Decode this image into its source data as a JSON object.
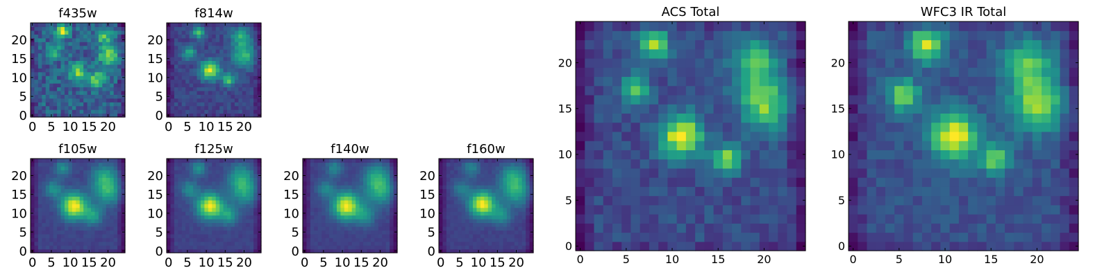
{
  "chart_data": [
    {
      "type": "heatmap",
      "title": "f435w",
      "grid_size": 25,
      "xlim": [
        0,
        25
      ],
      "ylim": [
        0,
        25
      ],
      "xticks": [
        0,
        5,
        10,
        15,
        20
      ],
      "yticks": [
        0,
        5,
        10,
        15,
        20
      ],
      "colormap": "viridis",
      "sources": [
        {
          "x": 8,
          "y": 22.5,
          "amp": 0.75,
          "sigma": 1.2
        },
        {
          "x": 12,
          "y": 11.5,
          "amp": 0.6,
          "sigma": 1.6
        },
        {
          "x": 20,
          "y": 16,
          "amp": 0.7,
          "sigma": 1.8
        },
        {
          "x": 17,
          "y": 9.5,
          "amp": 0.6,
          "sigma": 1.5
        },
        {
          "x": 19,
          "y": 21,
          "amp": 0.5,
          "sigma": 1.5
        },
        {
          "x": 6,
          "y": 17,
          "amp": 0.45,
          "sigma": 1.2
        }
      ],
      "background": 0.35,
      "noise": 0.35,
      "seed": 11
    },
    {
      "type": "heatmap",
      "title": "f814w",
      "grid_size": 25,
      "xlim": [
        0,
        25
      ],
      "ylim": [
        0,
        25
      ],
      "xticks": [
        0,
        5,
        10,
        15,
        20
      ],
      "yticks": [
        0,
        5,
        10,
        15,
        20
      ],
      "colormap": "viridis",
      "sources": [
        {
          "x": 8,
          "y": 22,
          "amp": 0.6,
          "sigma": 1.1
        },
        {
          "x": 11,
          "y": 12,
          "amp": 0.85,
          "sigma": 1.8
        },
        {
          "x": 16,
          "y": 9.5,
          "amp": 0.6,
          "sigma": 1.2
        },
        {
          "x": 5.5,
          "y": 16.5,
          "amp": 0.5,
          "sigma": 1.2
        },
        {
          "x": 20,
          "y": 16,
          "amp": 0.55,
          "sigma": 2.2
        },
        {
          "x": 19,
          "y": 21,
          "amp": 0.45,
          "sigma": 1.8
        }
      ],
      "background": 0.2,
      "noise": 0.16,
      "seed": 23
    },
    {
      "type": "heatmap",
      "title": "f105w",
      "grid_size": 25,
      "xlim": [
        0,
        25
      ],
      "ylim": [
        0,
        25
      ],
      "xticks": [
        0,
        5,
        10,
        15,
        20
      ],
      "yticks": [
        0,
        5,
        10,
        15,
        20
      ],
      "colormap": "viridis",
      "sources": [
        {
          "x": 11,
          "y": 12,
          "amp": 0.9,
          "sigma": 2.4
        },
        {
          "x": 8,
          "y": 22,
          "amp": 0.35,
          "sigma": 1.5
        },
        {
          "x": 5.5,
          "y": 16.5,
          "amp": 0.35,
          "sigma": 1.6
        },
        {
          "x": 16,
          "y": 9.5,
          "amp": 0.4,
          "sigma": 1.8
        },
        {
          "x": 20,
          "y": 16,
          "amp": 0.45,
          "sigma": 2.6
        },
        {
          "x": 19,
          "y": 20,
          "amp": 0.35,
          "sigma": 2.4
        }
      ],
      "background": 0.2,
      "noise": 0.07,
      "seed": 37
    },
    {
      "type": "heatmap",
      "title": "f125w",
      "grid_size": 25,
      "xlim": [
        0,
        25
      ],
      "ylim": [
        0,
        25
      ],
      "xticks": [
        0,
        5,
        10,
        15,
        20
      ],
      "yticks": [
        0,
        5,
        10,
        15,
        20
      ],
      "colormap": "viridis",
      "sources": [
        {
          "x": 11,
          "y": 12,
          "amp": 0.92,
          "sigma": 2.4
        },
        {
          "x": 8,
          "y": 22,
          "amp": 0.38,
          "sigma": 1.4
        },
        {
          "x": 5.5,
          "y": 16.5,
          "amp": 0.35,
          "sigma": 1.6
        },
        {
          "x": 16,
          "y": 9.5,
          "amp": 0.4,
          "sigma": 1.8
        },
        {
          "x": 20,
          "y": 16,
          "amp": 0.45,
          "sigma": 2.6
        },
        {
          "x": 19,
          "y": 20,
          "amp": 0.35,
          "sigma": 2.4
        }
      ],
      "background": 0.2,
      "noise": 0.07,
      "seed": 41
    },
    {
      "type": "heatmap",
      "title": "f140w",
      "grid_size": 25,
      "xlim": [
        0,
        25
      ],
      "ylim": [
        0,
        25
      ],
      "xticks": [
        0,
        5,
        10,
        15,
        20
      ],
      "yticks": [
        0,
        5,
        10,
        15,
        20
      ],
      "colormap": "viridis",
      "sources": [
        {
          "x": 11,
          "y": 12,
          "amp": 0.9,
          "sigma": 2.5
        },
        {
          "x": 8,
          "y": 22,
          "amp": 0.3,
          "sigma": 1.6
        },
        {
          "x": 5.5,
          "y": 16.5,
          "amp": 0.3,
          "sigma": 1.6
        },
        {
          "x": 16,
          "y": 9.5,
          "amp": 0.35,
          "sigma": 1.8
        },
        {
          "x": 20,
          "y": 16,
          "amp": 0.45,
          "sigma": 2.8
        },
        {
          "x": 19,
          "y": 20,
          "amp": 0.35,
          "sigma": 2.4
        }
      ],
      "background": 0.22,
      "noise": 0.06,
      "seed": 53
    },
    {
      "type": "heatmap",
      "title": "f160w",
      "grid_size": 25,
      "xlim": [
        0,
        25
      ],
      "ylim": [
        0,
        25
      ],
      "xticks": [
        0,
        5,
        10,
        15,
        20
      ],
      "yticks": [
        0,
        5,
        10,
        15,
        20
      ],
      "colormap": "viridis",
      "sources": [
        {
          "x": 11,
          "y": 12.5,
          "amp": 0.92,
          "sigma": 2.4
        },
        {
          "x": 8,
          "y": 22,
          "amp": 0.3,
          "sigma": 1.6
        },
        {
          "x": 5.5,
          "y": 16.5,
          "amp": 0.3,
          "sigma": 1.6
        },
        {
          "x": 16,
          "y": 9.5,
          "amp": 0.35,
          "sigma": 1.8
        },
        {
          "x": 20,
          "y": 16,
          "amp": 0.45,
          "sigma": 2.8
        },
        {
          "x": 19,
          "y": 20,
          "amp": 0.35,
          "sigma": 2.4
        }
      ],
      "background": 0.2,
      "noise": 0.06,
      "seed": 67
    },
    {
      "type": "heatmap",
      "title": "ACS Total",
      "grid_size": 25,
      "xlim": [
        0,
        25
      ],
      "ylim": [
        0,
        25
      ],
      "xticks": [
        0,
        5,
        10,
        15,
        20
      ],
      "yticks": [
        0,
        5,
        10,
        15,
        20
      ],
      "colormap": "viridis",
      "sources": [
        {
          "x": 8,
          "y": 22,
          "amp": 0.65,
          "sigma": 1.2
        },
        {
          "x": 11,
          "y": 12,
          "amp": 0.82,
          "sigma": 1.6
        },
        {
          "x": 16,
          "y": 9.5,
          "amp": 0.62,
          "sigma": 1.1
        },
        {
          "x": 6,
          "y": 17,
          "amp": 0.55,
          "sigma": 1.1
        },
        {
          "x": 20,
          "y": 15.5,
          "amp": 0.6,
          "sigma": 1.9
        },
        {
          "x": 19,
          "y": 20,
          "amp": 0.5,
          "sigma": 1.8
        }
      ],
      "background": 0.3,
      "noise": 0.18,
      "seed": 79
    },
    {
      "type": "heatmap",
      "title": "WFC3 IR Total",
      "grid_size": 25,
      "xlim": [
        0,
        25
      ],
      "ylim": [
        0,
        25
      ],
      "xticks": [
        0,
        5,
        10,
        15,
        20
      ],
      "yticks": [
        0,
        5,
        10,
        15,
        20
      ],
      "colormap": "viridis",
      "sources": [
        {
          "x": 8,
          "y": 22,
          "amp": 0.7,
          "sigma": 1.3
        },
        {
          "x": 11,
          "y": 12,
          "amp": 0.78,
          "sigma": 1.8
        },
        {
          "x": 15.5,
          "y": 9.5,
          "amp": 0.55,
          "sigma": 1.1
        },
        {
          "x": 5.5,
          "y": 16.5,
          "amp": 0.6,
          "sigma": 1.2
        },
        {
          "x": 20,
          "y": 15.5,
          "amp": 0.6,
          "sigma": 2.0
        },
        {
          "x": 19,
          "y": 20,
          "amp": 0.5,
          "sigma": 1.8
        }
      ],
      "background": 0.28,
      "noise": 0.14,
      "seed": 97
    }
  ]
}
